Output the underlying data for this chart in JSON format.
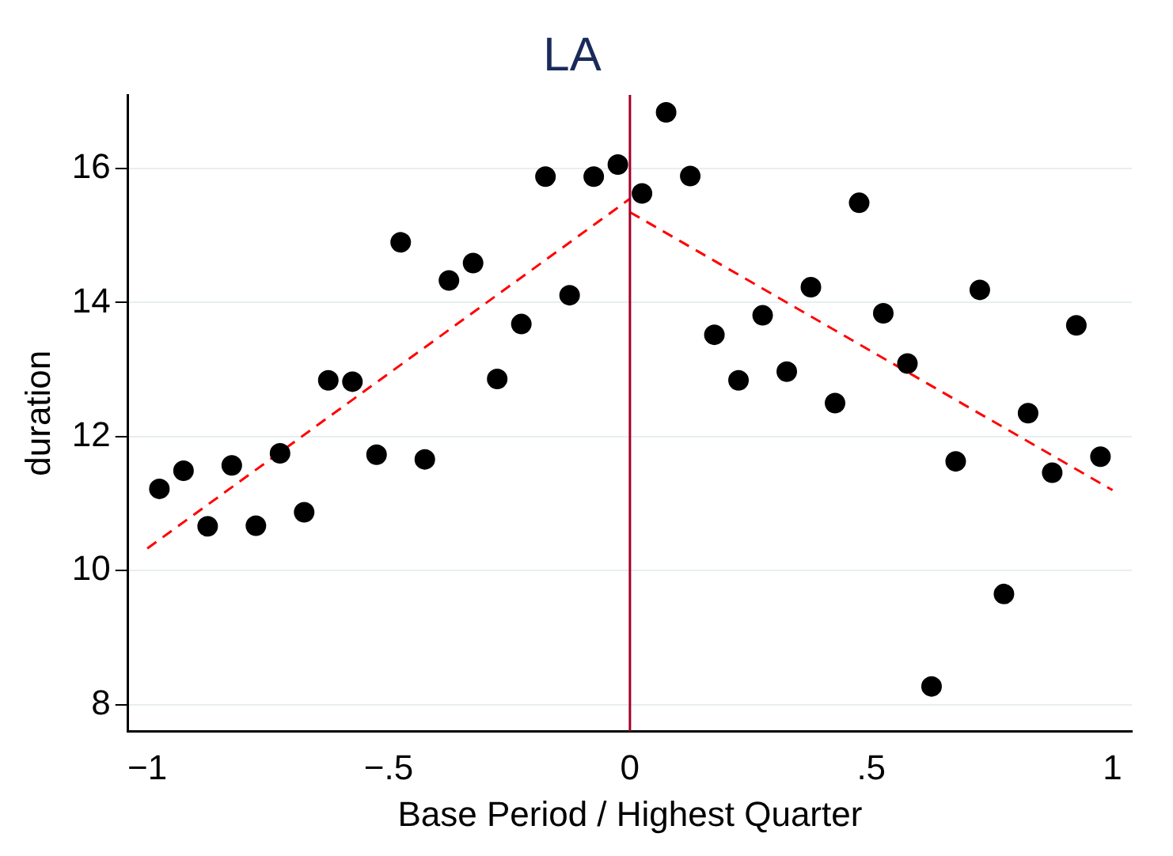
{
  "chart_data": {
    "type": "scatter",
    "title": "LA",
    "xlabel": "Base Period / Highest Quarter",
    "ylabel": "duration",
    "xlim": [
      -1.04,
      1.04
    ],
    "xticks": [
      {
        "value": -1,
        "label": "−1"
      },
      {
        "value": -0.5,
        "label": "−.5"
      },
      0,
      {
        "value": 0.5,
        "label": ".5"
      },
      1
    ],
    "ylim": [
      7.6,
      17.1
    ],
    "yticks": [
      8,
      10,
      12,
      14,
      16
    ],
    "grid": "y",
    "series": [
      {
        "marker": "circle",
        "color": "#000000",
        "x": [
          -0.975,
          -0.925,
          -0.875,
          -0.825,
          -0.775,
          -0.725,
          -0.675,
          -0.625,
          -0.575,
          -0.525,
          -0.475,
          -0.425,
          -0.375,
          -0.325,
          -0.275,
          -0.225,
          -0.175,
          -0.125,
          -0.075,
          -0.025,
          0.025,
          0.075,
          0.125,
          0.175,
          0.225,
          0.275,
          0.325,
          0.375,
          0.425,
          0.475,
          0.525,
          0.575,
          0.625,
          0.675,
          0.725,
          0.775,
          0.825,
          0.875,
          0.925,
          0.975
        ],
        "values": [
          11.22,
          11.49,
          10.66,
          11.57,
          10.67,
          11.75,
          10.87,
          12.84,
          12.82,
          11.73,
          14.9,
          11.66,
          14.33,
          14.59,
          12.86,
          13.68,
          15.88,
          14.11,
          15.88,
          16.06,
          15.63,
          16.84,
          15.89,
          13.52,
          12.84,
          13.81,
          12.97,
          14.23,
          12.5,
          15.49,
          13.84,
          13.09,
          8.27,
          11.63,
          14.19,
          9.65,
          12.35,
          11.46,
          13.66,
          11.7
        ]
      },
      {
        "type": "line",
        "color": "#ff0000",
        "line_style": "dashed",
        "x": [
          -1,
          0
        ],
        "values": [
          10.33,
          15.55
        ]
      },
      {
        "type": "line",
        "color": "#ff0000",
        "line_style": "dashed",
        "x": [
          0,
          1
        ],
        "values": [
          15.35,
          11.2
        ]
      }
    ],
    "ref_lines": [
      {
        "axis": "x",
        "value": 0,
        "color": "#a0002a"
      }
    ]
  }
}
